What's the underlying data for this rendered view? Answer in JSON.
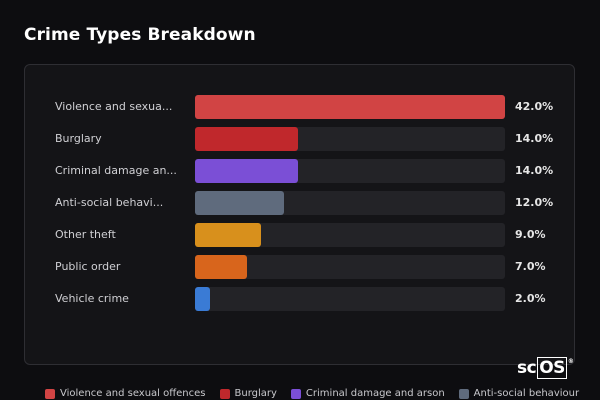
{
  "page": {
    "title": "Crime Types Breakdown"
  },
  "watermark": {
    "prefix": "sc",
    "boxed": "OS",
    "mark": "®"
  },
  "chart_data": {
    "type": "bar",
    "orientation": "horizontal",
    "title": "Crime Types Breakdown",
    "xlim": [
      0,
      42
    ],
    "categories": [
      "Violence and sexual offences",
      "Burglary",
      "Criminal damage and arson",
      "Anti-social behaviour",
      "Other theft",
      "Public order",
      "Vehicle crime"
    ],
    "display_labels": [
      "Violence and sexua...",
      "Burglary",
      "Criminal damage an...",
      "Anti-social behavi...",
      "Other theft",
      "Public order",
      "Vehicle crime"
    ],
    "values": [
      42.0,
      14.0,
      14.0,
      12.0,
      9.0,
      7.0,
      2.0
    ],
    "value_labels": [
      "42.0%",
      "14.0%",
      "14.0%",
      "12.0%",
      "9.0%",
      "7.0%",
      "2.0%"
    ],
    "colors": [
      "#d14444",
      "#c0282c",
      "#7b4fd6",
      "#5f6b7d",
      "#d8901c",
      "#d8651c",
      "#3a7bd5"
    ],
    "grid": false,
    "legend_position": "bottom",
    "legend": [
      {
        "label": "Violence and sexual offences",
        "color": "#d14444"
      },
      {
        "label": "Burglary",
        "color": "#c0282c"
      },
      {
        "label": "Criminal damage and arson",
        "color": "#7b4fd6"
      },
      {
        "label": "Anti-social behaviour",
        "color": "#5f6b7d"
      }
    ]
  }
}
